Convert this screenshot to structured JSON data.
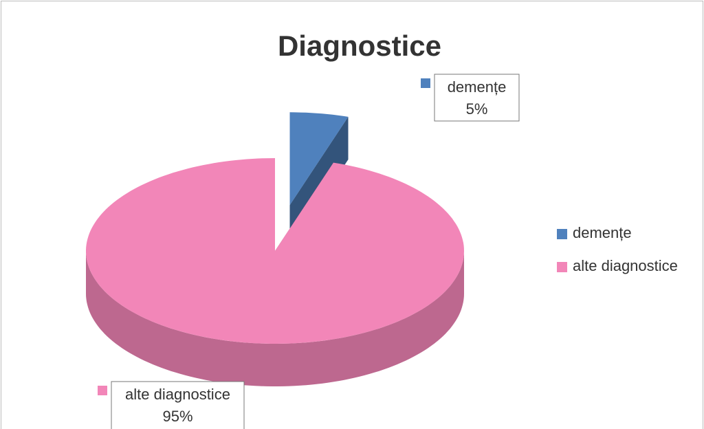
{
  "chart_data": {
    "type": "pie",
    "title": "Diagnostice",
    "categories": [
      "demențe",
      "alte diagnostice"
    ],
    "values": [
      5,
      95
    ],
    "value_labels": [
      "5%",
      "95%"
    ],
    "colors": [
      "#4f81bd",
      "#f286b8"
    ],
    "three_d": true,
    "legend": "right"
  }
}
